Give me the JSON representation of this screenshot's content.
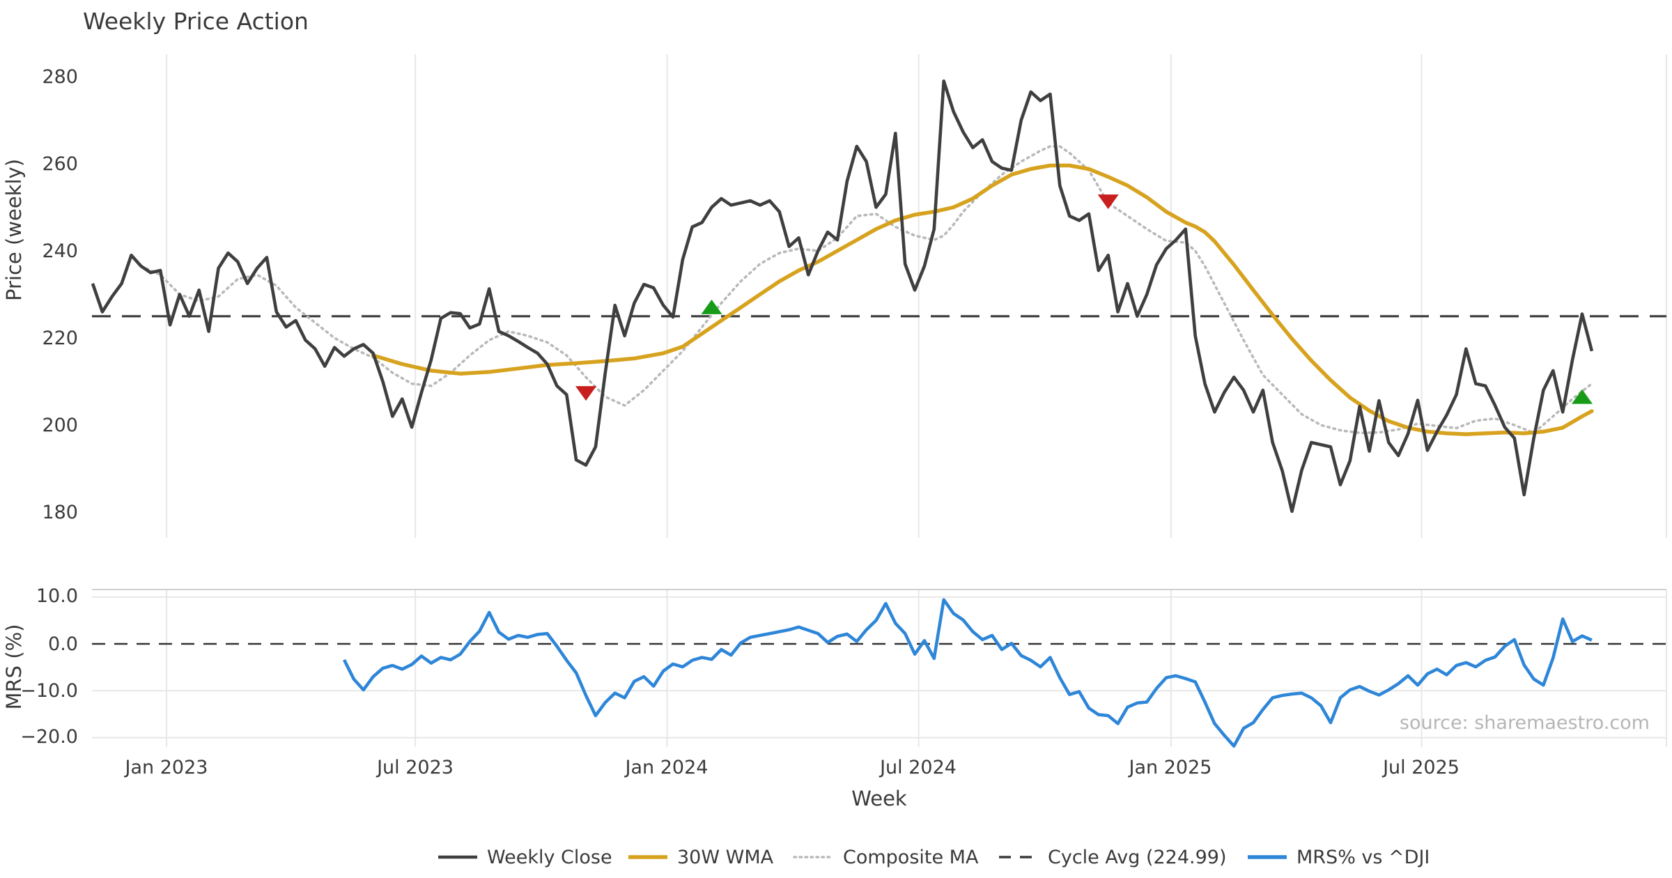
{
  "title": "Weekly Price Action",
  "source_note": "source: sharemaestro.com",
  "colors": {
    "weekly_close": "#3f3f3f",
    "wma30": "#d7a21e",
    "composite_ma": "#b9b9b9",
    "cycle_avg": "#3a3a3a",
    "mrs": "#2e86d8",
    "marker_sell": "#c81e1e",
    "marker_buy": "#189b18",
    "gridline": "#e7e7e7",
    "panel_spine": "#d0d0d0"
  },
  "legend": {
    "items": [
      {
        "label": "Weekly Close",
        "color": "#3f3f3f",
        "style": "solid"
      },
      {
        "label": "30W WMA",
        "color": "#d7a21e",
        "style": "solid"
      },
      {
        "label": "Composite MA",
        "color": "#b9b9b9",
        "style": "dotted"
      },
      {
        "label": "Cycle Avg (224.99)",
        "color": "#3a3a3a",
        "style": "dashed"
      },
      {
        "label": "MRS% vs ^DJI",
        "color": "#2e86d8",
        "style": "solid"
      }
    ]
  },
  "chart_data": {
    "type": "line",
    "xlabel": "Week",
    "x_unit": "week_index",
    "x_ticks": [
      {
        "week": 7.64,
        "label": "Jan 2023"
      },
      {
        "week": 33.36,
        "label": "Jul 2023"
      },
      {
        "week": 59.4,
        "label": "Jan 2024"
      },
      {
        "week": 85.4,
        "label": "Jul 2024"
      },
      {
        "week": 111.5,
        "label": "Jan 2025"
      },
      {
        "week": 137.4,
        "label": "Jul 2025"
      }
    ],
    "panels": [
      {
        "name": "price",
        "ylabel": "Price (weekly)",
        "ylim": [
          174.4,
          285.1
        ],
        "grid": "vertical-only",
        "yticks": [
          {
            "value": 280,
            "label": "280"
          },
          {
            "value": 260,
            "label": "260"
          },
          {
            "value": 240,
            "label": "240"
          },
          {
            "value": 220,
            "label": "220"
          },
          {
            "value": 200,
            "label": "200"
          },
          {
            "value": 180,
            "label": "180"
          }
        ]
      },
      {
        "name": "mrs",
        "ylabel": "MRS (%)",
        "ylim": [
          -22.2,
          11.6
        ],
        "grid": "both",
        "yticks": [
          {
            "value": 10,
            "label": "10.0"
          },
          {
            "value": 0,
            "label": "0.0"
          },
          {
            "value": -10,
            "label": "−10.0"
          },
          {
            "value": -20,
            "label": "−20.0"
          }
        ]
      }
    ],
    "series": {
      "weekly_close": {
        "name": "Weekly Close",
        "panel": "price",
        "start_week": 0,
        "values": [
          232.5,
          226,
          229.5,
          232.5,
          239,
          236.5,
          235,
          235.5,
          223,
          230,
          225,
          231,
          221.5,
          236,
          239.5,
          237.5,
          232.5,
          236,
          238.5,
          226,
          222.5,
          224,
          219.5,
          217.5,
          213.5,
          217.8,
          215.8,
          217.5,
          218.5,
          216.5,
          210,
          202,
          206,
          199.5,
          207.5,
          215,
          224.5,
          225.8,
          225.6,
          222.3,
          223.2,
          231.3,
          221.5,
          220.5,
          219.2,
          217.8,
          216.5,
          214,
          209,
          207,
          192,
          190.8,
          195,
          212,
          227.5,
          220.5,
          228,
          232.3,
          231.5,
          227.5,
          224.8,
          238,
          245.5,
          246.5,
          250,
          252,
          250.5,
          251,
          251.5,
          250.5,
          251.5,
          249,
          241,
          243,
          234.5,
          240,
          244.3,
          242.5,
          256,
          264,
          260.5,
          250,
          253,
          267,
          237,
          231,
          236.5,
          245,
          279,
          272,
          267.3,
          263.7,
          265.5,
          260.5,
          259,
          258.5,
          270,
          276.5,
          274.5,
          276,
          255,
          248,
          247,
          248.5,
          235.5,
          239,
          226,
          232.5,
          225,
          230,
          236.8,
          240.5,
          242.5,
          245,
          220.5,
          209.5,
          203,
          207.5,
          211,
          208,
          203,
          208,
          196,
          189.5,
          180.2,
          189.6,
          196,
          195.5,
          195,
          186.3,
          191.8,
          204.3,
          194,
          205.6,
          196,
          193,
          198,
          205.7,
          194.2,
          198.5,
          202.3,
          207,
          217.5,
          209.5,
          209,
          204.5,
          199.5,
          197,
          184,
          197,
          208,
          212.5,
          203,
          215,
          225.5,
          217
        ]
      },
      "wma30": {
        "name": "30W WMA",
        "panel": "price",
        "points": [
          [
            29,
            216
          ],
          [
            32,
            214
          ],
          [
            35,
            212.5
          ],
          [
            38,
            211.8
          ],
          [
            41,
            212.2
          ],
          [
            44,
            213
          ],
          [
            47,
            213.8
          ],
          [
            50,
            214.2
          ],
          [
            53,
            214.7
          ],
          [
            56,
            215.3
          ],
          [
            59,
            216.5
          ],
          [
            61,
            218
          ],
          [
            63,
            221
          ],
          [
            65,
            224
          ],
          [
            67,
            227
          ],
          [
            69,
            230
          ],
          [
            71,
            233
          ],
          [
            73,
            235.5
          ],
          [
            75,
            237.5
          ],
          [
            77,
            240
          ],
          [
            79,
            242.5
          ],
          [
            81,
            245
          ],
          [
            83,
            247
          ],
          [
            85,
            248.3
          ],
          [
            87,
            249
          ],
          [
            89,
            250
          ],
          [
            91,
            252
          ],
          [
            93,
            255
          ],
          [
            95,
            257.5
          ],
          [
            97,
            258.8
          ],
          [
            99,
            259.6
          ],
          [
            101,
            259.6
          ],
          [
            103,
            258.8
          ],
          [
            105,
            257
          ],
          [
            107,
            255
          ],
          [
            109,
            252.3
          ],
          [
            111,
            249
          ],
          [
            113,
            246.5
          ],
          [
            114,
            245.6
          ],
          [
            115,
            244.3
          ],
          [
            116,
            242.2
          ],
          [
            118,
            236.8
          ],
          [
            120,
            231
          ],
          [
            122,
            225.3
          ],
          [
            124,
            219.8
          ],
          [
            126,
            214.8
          ],
          [
            128,
            210.3
          ],
          [
            130,
            206.3
          ],
          [
            132,
            203.3
          ],
          [
            134,
            200.9
          ],
          [
            136,
            199.4
          ],
          [
            138,
            198.5
          ],
          [
            140,
            198.1
          ],
          [
            142,
            197.9
          ],
          [
            144,
            198.1
          ],
          [
            146,
            198.3
          ],
          [
            148,
            198.1
          ],
          [
            150,
            198.5
          ],
          [
            152,
            199.4
          ],
          [
            154,
            202
          ],
          [
            155,
            203.2
          ]
        ]
      },
      "composite_ma": {
        "name": "Composite MA",
        "panel": "price",
        "points": [
          [
            5,
            236.5
          ],
          [
            7,
            234.5
          ],
          [
            9,
            230
          ],
          [
            11,
            228.5
          ],
          [
            13,
            229.5
          ],
          [
            15,
            233.5
          ],
          [
            17,
            234.5
          ],
          [
            19,
            232
          ],
          [
            21,
            227
          ],
          [
            23,
            223.5
          ],
          [
            25,
            220
          ],
          [
            27,
            217.5
          ],
          [
            29,
            215.5
          ],
          [
            31,
            212
          ],
          [
            33,
            209.5
          ],
          [
            35,
            209
          ],
          [
            37,
            212
          ],
          [
            39,
            216
          ],
          [
            41,
            219.5
          ],
          [
            43,
            221.5
          ],
          [
            45,
            220.5
          ],
          [
            47,
            219
          ],
          [
            49,
            216
          ],
          [
            51,
            211
          ],
          [
            53,
            206.5
          ],
          [
            55,
            204.5
          ],
          [
            57,
            208
          ],
          [
            59,
            212.5
          ],
          [
            61,
            217
          ],
          [
            63,
            222.5
          ],
          [
            65,
            228
          ],
          [
            67,
            233
          ],
          [
            69,
            237
          ],
          [
            71,
            239.5
          ],
          [
            73,
            240.5
          ],
          [
            75,
            240
          ],
          [
            77,
            243
          ],
          [
            79,
            248
          ],
          [
            81,
            248.5
          ],
          [
            83,
            245.5
          ],
          [
            85,
            243.5
          ],
          [
            87,
            242.5
          ],
          [
            88,
            243.5
          ],
          [
            89,
            246
          ],
          [
            90,
            249
          ],
          [
            92,
            253.5
          ],
          [
            94,
            257.5
          ],
          [
            96,
            260.5
          ],
          [
            98,
            263
          ],
          [
            99,
            264
          ],
          [
            100,
            264
          ],
          [
            101,
            262.5
          ],
          [
            103,
            258.5
          ],
          [
            105,
            251
          ],
          [
            107,
            248
          ],
          [
            109,
            245
          ],
          [
            111,
            242.3
          ],
          [
            113,
            241.9
          ],
          [
            114,
            240
          ],
          [
            115,
            236.5
          ],
          [
            117,
            228
          ],
          [
            119,
            219.5
          ],
          [
            121,
            211.5
          ],
          [
            123,
            207
          ],
          [
            125,
            202.5
          ],
          [
            127,
            200
          ],
          [
            129,
            198.8
          ],
          [
            131,
            198.2
          ],
          [
            133,
            198.3
          ],
          [
            135,
            199
          ],
          [
            137,
            200.3
          ],
          [
            139,
            199.8
          ],
          [
            141,
            199.3
          ],
          [
            143,
            201
          ],
          [
            145,
            201.5
          ],
          [
            147,
            200
          ],
          [
            149,
            198.2
          ],
          [
            151,
            202
          ],
          [
            153,
            206
          ],
          [
            155,
            209.5
          ]
        ]
      },
      "cycle_avg": {
        "name": "Cycle Avg",
        "panel": "price",
        "value": 224.99
      },
      "mrs": {
        "name": "MRS% vs ^DJI",
        "panel": "mrs",
        "zero_line": 0,
        "start_week": 26,
        "values": [
          -3.4,
          -7.5,
          -9.8,
          -7,
          -5.2,
          -4.6,
          -5.4,
          -4.4,
          -2.6,
          -4.1,
          -2.9,
          -3.4,
          -2.2,
          0.5,
          2.7,
          6.7,
          2.5,
          1,
          1.8,
          1.4,
          2,
          2.2,
          -0.5,
          -3.5,
          -6.2,
          -11,
          -15.3,
          -12.5,
          -10.5,
          -11.5,
          -8,
          -7,
          -9,
          -5.8,
          -4.3,
          -4.9,
          -3.5,
          -2.9,
          -3.3,
          -1.2,
          -2.4,
          0.2,
          1.4,
          1.8,
          2.2,
          2.6,
          3,
          3.6,
          2.9,
          2.2,
          0.3,
          1.6,
          2.1,
          0.5,
          3,
          5,
          8.6,
          4.4,
          2.2,
          -2.2,
          0.7,
          -3.1,
          9.4,
          6.5,
          5.1,
          2.6,
          0.9,
          1.8,
          -1.2,
          0.1,
          -2.5,
          -3.5,
          -4.9,
          -2.9,
          -7.2,
          -10.8,
          -10.2,
          -13.7,
          -15.1,
          -15.3,
          -17,
          -13.5,
          -12.6,
          -12.4,
          -9.5,
          -7.2,
          -6.8,
          -7.4,
          -8.1,
          -12.4,
          -17,
          -19.5,
          -21.8,
          -18,
          -16.8,
          -14,
          -11.5,
          -11,
          -10.7,
          -10.5,
          -11.5,
          -13.2,
          -16.8,
          -11.5,
          -9.8,
          -9.1,
          -10.1,
          -10.9,
          -9.8,
          -8.5,
          -6.8,
          -8.8,
          -6.4,
          -5.4,
          -6.6,
          -4.6,
          -4,
          -4.9,
          -3.5,
          -2.8,
          -0.5,
          0.9,
          -4.5,
          -7.5,
          -8.8,
          -3,
          5.3,
          0.5,
          1.7,
          0.8
        ]
      }
    },
    "markers": [
      {
        "week": 51,
        "value": 207.5,
        "direction": "down",
        "meaning": "sell-signal"
      },
      {
        "week": 64,
        "value": 226.9,
        "direction": "up",
        "meaning": "buy-signal"
      },
      {
        "week": 105,
        "value": 251.5,
        "direction": "down",
        "meaning": "sell-signal"
      },
      {
        "week": 154,
        "value": 206.3,
        "direction": "up",
        "meaning": "buy-signal"
      }
    ]
  }
}
